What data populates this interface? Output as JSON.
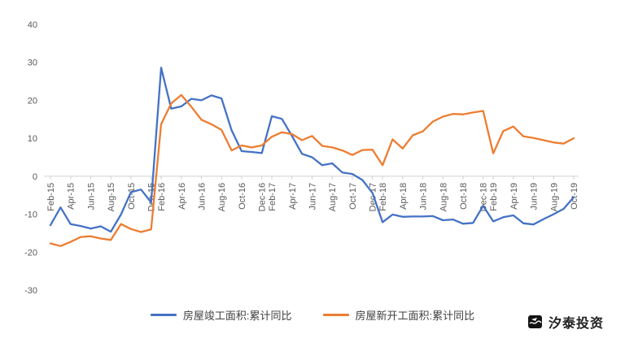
{
  "chart_data": {
    "type": "line",
    "title": "",
    "xlabel": "",
    "ylabel": "",
    "ylim": [
      -30,
      40
    ],
    "y_ticks": [
      40,
      30,
      20,
      10,
      0,
      -10,
      -20,
      -30
    ],
    "grid": false,
    "legend_position": "bottom",
    "categories": [
      "Feb-15",
      "Mar-15",
      "Apr-15",
      "May-15",
      "Jun-15",
      "Jul-15",
      "Aug-15",
      "Sep-15",
      "Oct-15",
      "Nov-15",
      "Dec-15",
      "Feb-16",
      "Mar-16",
      "Apr-16",
      "May-16",
      "Jun-16",
      "Jul-16",
      "Aug-16",
      "Sep-16",
      "Oct-16",
      "Nov-16",
      "Dec-16",
      "Feb-17",
      "Mar-17",
      "Apr-17",
      "May-17",
      "Jun-17",
      "Jul-17",
      "Aug-17",
      "Sep-17",
      "Oct-17",
      "Nov-17",
      "Dec-17",
      "Feb-18",
      "Mar-18",
      "Apr-18",
      "May-18",
      "Jun-18",
      "Jul-18",
      "Aug-18",
      "Sep-18",
      "Oct-18",
      "Nov-18",
      "Dec-18",
      "Feb-19",
      "Mar-19",
      "Apr-19",
      "May-19",
      "Jun-19",
      "Jul-19",
      "Aug-19",
      "Sep-19",
      "Oct-19"
    ],
    "x_tick_labels": [
      "Feb-15",
      "Apr-15",
      "Jun-15",
      "Aug-15",
      "Oct-15",
      "Dec-15",
      "Feb-16",
      "Apr-16",
      "Jun-16",
      "Aug-16",
      "Oct-16",
      "Dec-16",
      "Feb-17",
      "Apr-17",
      "Jun-17",
      "Aug-17",
      "Oct-17",
      "Dec-17",
      "Feb-18",
      "Apr-18",
      "Jun-18",
      "Aug-18",
      "Oct-18",
      "Dec-18",
      "Feb-19",
      "Apr-19",
      "Jun-19",
      "Aug-19",
      "Oct-19"
    ],
    "series": [
      {
        "name": "房屋竣工面积:累计同比",
        "color": "#4472C4",
        "values": [
          -12.9,
          -8.2,
          -12.6,
          -13.1,
          -13.8,
          -13.2,
          -14.6,
          -10.1,
          -4.2,
          -3.5,
          -6.9,
          28.6,
          17.8,
          18.4,
          20.4,
          20.0,
          21.3,
          20.5,
          12.1,
          6.6,
          6.4,
          6.1,
          15.8,
          15.1,
          10.6,
          5.9,
          5.0,
          2.9,
          3.4,
          1.0,
          0.6,
          -1.0,
          -4.4,
          -12.1,
          -10.1,
          -10.7,
          -10.6,
          -10.6,
          -10.5,
          -11.6,
          -11.4,
          -12.5,
          -12.3,
          -7.8,
          -11.9,
          -10.8,
          -10.3,
          -12.4,
          -12.7,
          -11.3,
          -10.0,
          -8.6,
          -5.5
        ]
      },
      {
        "name": "房屋新开工面积:累计同比",
        "color": "#ED7D31",
        "values": [
          -17.7,
          -18.4,
          -17.3,
          -16.0,
          -15.8,
          -16.4,
          -16.8,
          -12.6,
          -13.9,
          -14.7,
          -14.0,
          13.7,
          19.2,
          21.4,
          18.3,
          14.9,
          13.7,
          12.2,
          6.8,
          8.1,
          7.6,
          8.1,
          10.4,
          11.6,
          11.1,
          9.5,
          10.6,
          8.0,
          7.6,
          6.8,
          5.6,
          6.9,
          7.0,
          2.9,
          9.7,
          7.3,
          10.8,
          11.8,
          14.4,
          15.7,
          16.4,
          16.3,
          16.8,
          17.2,
          6.0,
          11.9,
          13.1,
          10.5,
          10.1,
          9.5,
          8.9,
          8.6,
          10.0
        ]
      }
    ]
  },
  "legend": {
    "item1": "房屋竣工面积:累计同比",
    "item2": "房屋新开工面积:累计同比"
  },
  "watermark": {
    "text": "汐泰投资"
  },
  "colors": {
    "series1": "#4472C4",
    "series2": "#ED7D31",
    "axis_line": "#d0d0d0",
    "axis_text": "#595959"
  }
}
